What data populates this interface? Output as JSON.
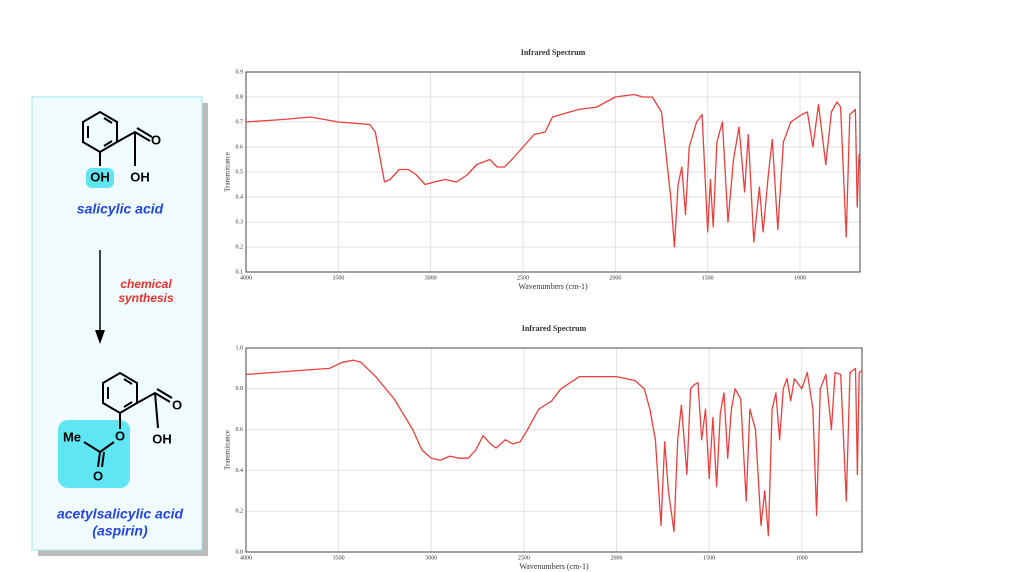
{
  "chart_data": [
    {
      "type": "line",
      "title": "Infrared Spectrum",
      "xlabel": "Wavenumbers (cm-1)",
      "ylabel": "Transmittance",
      "color": "#e8403f",
      "grid": true,
      "xlim": [
        4000,
        675
      ],
      "xticks": [
        4000,
        3500,
        3000,
        2500,
        2000,
        1500,
        1000
      ],
      "ylim": [
        0.1,
        0.9
      ],
      "yticks": [
        0.1,
        0.2,
        0.3,
        0.4,
        0.5,
        0.6,
        0.7,
        0.8,
        0.9
      ],
      "x": [
        4000,
        3800,
        3650,
        3500,
        3330,
        3300,
        3250,
        3220,
        3170,
        3120,
        3080,
        3030,
        2980,
        2920,
        2860,
        2800,
        2750,
        2680,
        2640,
        2600,
        2560,
        2500,
        2440,
        2380,
        2340,
        2200,
        2100,
        2050,
        2000,
        1900,
        1850,
        1800,
        1750,
        1700,
        1680,
        1660,
        1640,
        1620,
        1600,
        1580,
        1560,
        1530,
        1500,
        1485,
        1470,
        1450,
        1420,
        1390,
        1360,
        1330,
        1300,
        1280,
        1250,
        1220,
        1200,
        1170,
        1150,
        1120,
        1090,
        1050,
        1010,
        990,
        960,
        930,
        900,
        860,
        830,
        800,
        780,
        750,
        730,
        700,
        690,
        680,
        675
      ],
      "values": [
        0.7,
        0.71,
        0.72,
        0.7,
        0.69,
        0.66,
        0.46,
        0.47,
        0.51,
        0.51,
        0.49,
        0.45,
        0.46,
        0.47,
        0.46,
        0.49,
        0.53,
        0.55,
        0.52,
        0.52,
        0.55,
        0.6,
        0.65,
        0.66,
        0.72,
        0.75,
        0.76,
        0.78,
        0.8,
        0.81,
        0.8,
        0.8,
        0.74,
        0.4,
        0.2,
        0.45,
        0.52,
        0.33,
        0.6,
        0.65,
        0.7,
        0.73,
        0.26,
        0.47,
        0.28,
        0.62,
        0.7,
        0.3,
        0.55,
        0.68,
        0.42,
        0.65,
        0.22,
        0.44,
        0.26,
        0.5,
        0.63,
        0.27,
        0.62,
        0.7,
        0.72,
        0.73,
        0.74,
        0.6,
        0.77,
        0.53,
        0.74,
        0.78,
        0.76,
        0.24,
        0.73,
        0.75,
        0.36,
        0.57,
        0.55
      ]
    },
    {
      "type": "line",
      "title": "Infrared Spectrum",
      "xlabel": "Wavenumbers (cm-1)",
      "ylabel": "Transmittance",
      "color": "#e8403f",
      "grid": true,
      "xlim": [
        4000,
        675
      ],
      "xticks": [
        4000,
        3500,
        3000,
        2500,
        2000,
        1500,
        1000
      ],
      "ylim": [
        0,
        1
      ],
      "yticks": [
        {
          "value": 0,
          "label": "0.0"
        },
        0.2,
        0.4,
        0.6,
        0.8,
        {
          "value": 1,
          "label": "1.0"
        }
      ],
      "x": [
        4000,
        3700,
        3550,
        3480,
        3420,
        3380,
        3300,
        3200,
        3100,
        3050,
        3000,
        2950,
        2900,
        2850,
        2800,
        2760,
        2720,
        2680,
        2650,
        2600,
        2560,
        2520,
        2480,
        2420,
        2350,
        2300,
        2200,
        2100,
        2000,
        1950,
        1900,
        1850,
        1820,
        1790,
        1760,
        1740,
        1720,
        1690,
        1670,
        1650,
        1620,
        1600,
        1580,
        1560,
        1540,
        1520,
        1500,
        1480,
        1460,
        1440,
        1420,
        1400,
        1380,
        1360,
        1330,
        1300,
        1280,
        1250,
        1220,
        1200,
        1180,
        1160,
        1140,
        1120,
        1100,
        1080,
        1060,
        1040,
        1000,
        970,
        940,
        920,
        900,
        870,
        840,
        820,
        790,
        760,
        740,
        710,
        700,
        690,
        675
      ],
      "values": [
        0.87,
        0.89,
        0.9,
        0.93,
        0.94,
        0.93,
        0.86,
        0.75,
        0.6,
        0.5,
        0.46,
        0.45,
        0.47,
        0.46,
        0.46,
        0.5,
        0.57,
        0.53,
        0.51,
        0.55,
        0.53,
        0.54,
        0.6,
        0.7,
        0.74,
        0.8,
        0.86,
        0.86,
        0.86,
        0.85,
        0.84,
        0.8,
        0.7,
        0.55,
        0.13,
        0.54,
        0.3,
        0.1,
        0.55,
        0.72,
        0.38,
        0.8,
        0.82,
        0.83,
        0.55,
        0.7,
        0.36,
        0.66,
        0.32,
        0.68,
        0.78,
        0.46,
        0.7,
        0.8,
        0.75,
        0.25,
        0.7,
        0.6,
        0.13,
        0.3,
        0.08,
        0.7,
        0.78,
        0.55,
        0.8,
        0.85,
        0.74,
        0.85,
        0.8,
        0.88,
        0.7,
        0.18,
        0.8,
        0.87,
        0.6,
        0.88,
        0.87,
        0.25,
        0.88,
        0.9,
        0.38,
        0.88,
        0.89
      ]
    }
  ],
  "panel": {
    "salicylic_labels": [
      "O",
      "OH",
      "OH"
    ],
    "name1": "salicylic acid",
    "reaction": [
      "chemical",
      "synthesis"
    ],
    "aspirin_labels": [
      "O",
      "OH",
      "Me",
      "O"
    ],
    "name2": [
      "acetylsalicylic acid",
      "(aspirin)"
    ]
  }
}
